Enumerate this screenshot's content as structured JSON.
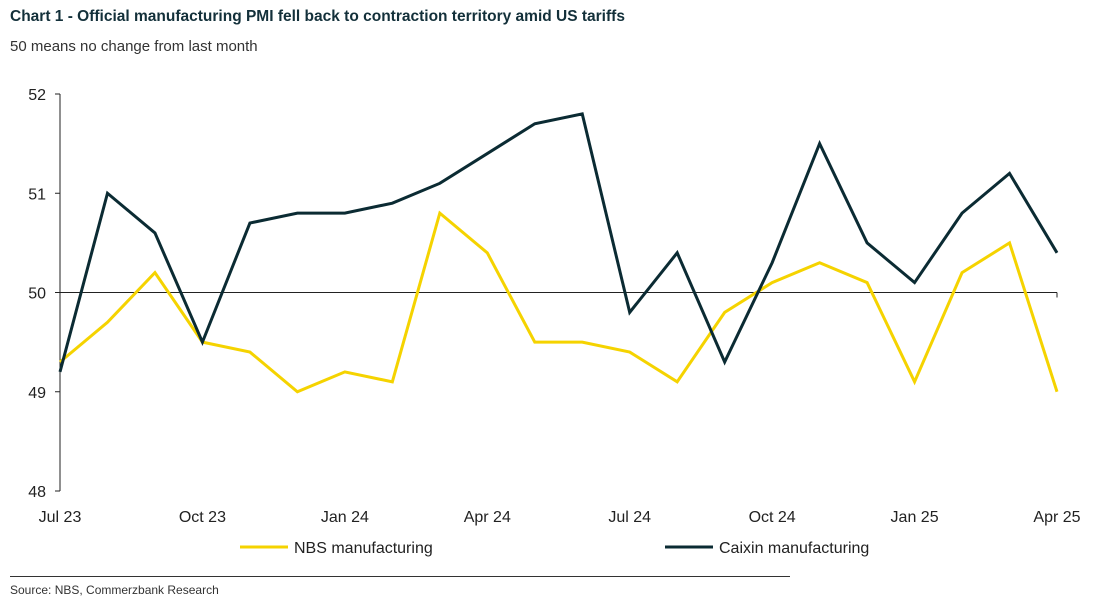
{
  "chart_data": {
    "type": "line",
    "title": "Chart 1 - Official manufacturing PMI fell back to contraction territory amid US tariffs",
    "subtitle": "50 means no change from last month",
    "source": "Source: NBS, Commerzbank Research",
    "xlabel": "",
    "ylabel": "",
    "ylim": [
      48,
      52
    ],
    "yticks": [
      48,
      49,
      50,
      51,
      52
    ],
    "reference_line": 50,
    "x": [
      "Jul 23",
      "Aug 23",
      "Sep 23",
      "Oct 23",
      "Nov 23",
      "Dec 23",
      "Jan 24",
      "Feb 24",
      "Mar 24",
      "Apr 24",
      "May 24",
      "Jun 24",
      "Jul 24",
      "Aug 24",
      "Sep 24",
      "Oct 24",
      "Nov 24",
      "Dec 24",
      "Jan 25",
      "Feb 25",
      "Mar 25",
      "Apr 25"
    ],
    "xtick_labels": [
      "Jul 23",
      "Oct 23",
      "Jan 24",
      "Apr 24",
      "Jul 24",
      "Oct 24",
      "Jan 25",
      "Apr 25"
    ],
    "legend_position": "bottom",
    "series": [
      {
        "name": "NBS manufacturing",
        "color": "#f5d300",
        "values": [
          49.3,
          49.7,
          50.2,
          49.5,
          49.4,
          49.0,
          49.2,
          49.1,
          50.8,
          50.4,
          49.5,
          49.5,
          49.4,
          49.1,
          49.8,
          50.1,
          50.3,
          50.1,
          49.1,
          50.2,
          50.5,
          49.0
        ]
      },
      {
        "name": "Caixin manufacturing",
        "color": "#0b2b33",
        "values": [
          49.2,
          51.0,
          50.6,
          49.5,
          50.7,
          50.8,
          50.8,
          50.9,
          51.1,
          51.4,
          51.7,
          51.8,
          49.8,
          50.4,
          49.3,
          50.3,
          51.5,
          50.5,
          50.1,
          50.8,
          51.2,
          50.4
        ]
      }
    ]
  }
}
